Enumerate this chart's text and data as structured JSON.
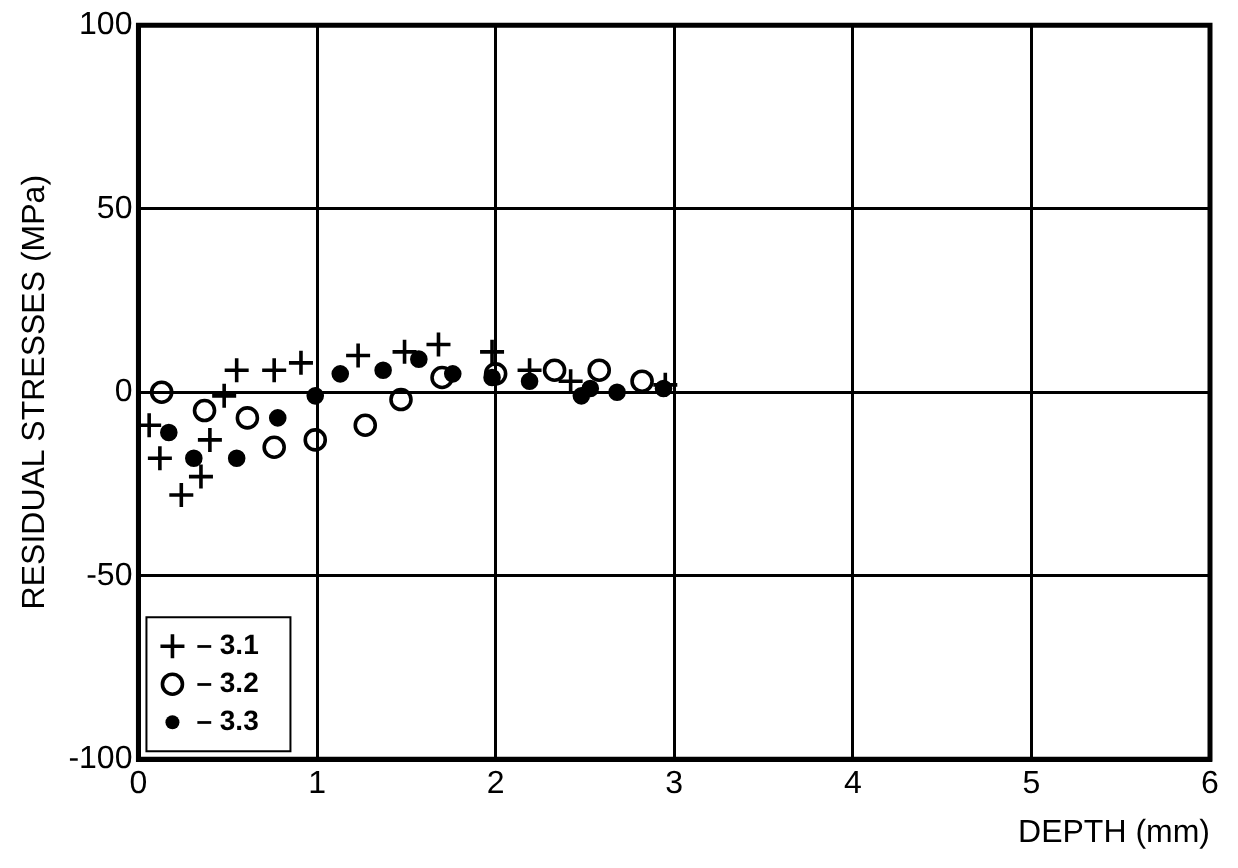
{
  "chart_data": {
    "type": "scatter",
    "xlabel": "DEPTH (mm)",
    "ylabel": "RESIDUAL STRESSES (MPa)",
    "xlim": [
      0,
      6
    ],
    "xticks": [
      0,
      1,
      2,
      3,
      4,
      5,
      6
    ],
    "ylim": [
      -100,
      100
    ],
    "yticks": [
      -100,
      -50,
      0,
      50,
      100
    ],
    "grid": true,
    "legend": "bottom left",
    "series": [
      {
        "name": "– 3.1",
        "color": "#000000",
        "marker": "cross",
        "x": [
          0.06,
          0.12,
          0.24,
          0.35,
          0.4,
          0.48,
          0.55,
          0.76,
          0.91,
          1.23,
          1.49,
          1.68,
          1.98,
          2.19,
          2.42,
          2.95
        ],
        "values": [
          -9,
          -18,
          -28,
          -23,
          -13,
          -1,
          6,
          6,
          8,
          10,
          11,
          13,
          11,
          6,
          3,
          2
        ]
      },
      {
        "name": "– 3.2",
        "color": "#000000",
        "marker": "circle",
        "x": [
          0.13,
          0.37,
          0.61,
          0.76,
          0.99,
          1.27,
          1.47,
          1.7,
          2.0,
          2.33,
          2.58,
          2.82
        ],
        "values": [
          0,
          -5,
          -7,
          -15,
          -13,
          -9,
          -2,
          4,
          5,
          6,
          6,
          3
        ]
      },
      {
        "name": "– 3.3",
        "color": "#000000",
        "marker": "dot",
        "x": [
          0.17,
          0.31,
          0.55,
          0.78,
          0.99,
          1.13,
          1.37,
          1.57,
          1.76,
          1.98,
          2.19,
          2.48,
          2.53,
          2.68,
          2.94
        ],
        "values": [
          -11,
          -18,
          -18,
          -7,
          -1,
          5,
          6,
          9,
          5,
          4,
          3,
          -1,
          1,
          0,
          1
        ]
      }
    ]
  }
}
